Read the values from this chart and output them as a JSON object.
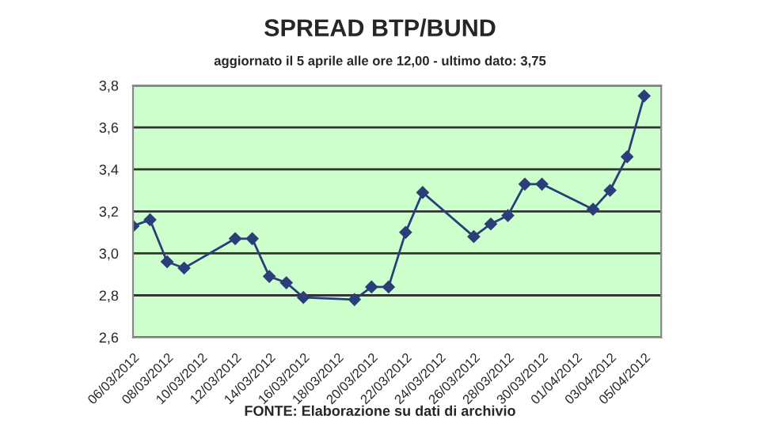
{
  "chart_data": {
    "type": "line",
    "title": "SPREAD BTP/BUND",
    "subtitle": "aggiornato il 5 aprile alle ore 12,00 - ultimo dato: 3,75",
    "x": [
      "2012-03-06",
      "2012-03-07",
      "2012-03-08",
      "2012-03-09",
      "2012-03-12",
      "2012-03-13",
      "2012-03-14",
      "2012-03-15",
      "2012-03-16",
      "2012-03-19",
      "2012-03-20",
      "2012-03-21",
      "2012-03-22",
      "2012-03-23",
      "2012-03-26",
      "2012-03-27",
      "2012-03-28",
      "2012-03-29",
      "2012-03-30",
      "2012-04-02",
      "2012-04-03",
      "2012-04-04",
      "2012-04-05"
    ],
    "series": [
      {
        "color": "#2a3f7a",
        "values": [
          3.13,
          3.16,
          2.96,
          2.93,
          3.07,
          3.07,
          2.89,
          2.86,
          2.79,
          2.78,
          2.84,
          2.84,
          3.1,
          3.29,
          3.08,
          3.14,
          3.18,
          3.33,
          3.33,
          3.21,
          3.3,
          3.46,
          3.75
        ]
      }
    ],
    "marker": "diamond",
    "line_style": "solid",
    "grid": "y",
    "legend": false,
    "ylim": [
      2.6,
      3.8
    ],
    "yticks": [
      {
        "value": 2.6,
        "label": "2,6"
      },
      {
        "value": 2.8,
        "label": "2,8"
      },
      {
        "value": 3.0,
        "label": "3,0"
      },
      {
        "value": 3.2,
        "label": "3,2"
      },
      {
        "value": 3.4,
        "label": "3,4"
      },
      {
        "value": 3.6,
        "label": "3,6"
      },
      {
        "value": 3.8,
        "label": "3,8"
      }
    ],
    "xlim": [
      "2012-03-06",
      "2012-04-06"
    ],
    "xticks": [
      {
        "value": "2012-03-06",
        "label": "06/03/2012"
      },
      {
        "value": "2012-03-08",
        "label": "08/03/2012"
      },
      {
        "value": "2012-03-10",
        "label": "10/03/2012"
      },
      {
        "value": "2012-03-12",
        "label": "12/03/2012"
      },
      {
        "value": "2012-03-14",
        "label": "14/03/2012"
      },
      {
        "value": "2012-03-16",
        "label": "16/03/2012"
      },
      {
        "value": "2012-03-18",
        "label": "18/03/2012"
      },
      {
        "value": "2012-03-20",
        "label": "20/03/2012"
      },
      {
        "value": "2012-03-22",
        "label": "22/03/2012"
      },
      {
        "value": "2012-03-24",
        "label": "24/03/2012"
      },
      {
        "value": "2012-03-26",
        "label": "26/03/2012"
      },
      {
        "value": "2012-03-28",
        "label": "28/03/2012"
      },
      {
        "value": "2012-03-30",
        "label": "30/03/2012"
      },
      {
        "value": "2012-04-01",
        "label": "01/04/2012"
      },
      {
        "value": "2012-04-03",
        "label": "03/04/2012"
      },
      {
        "value": "2012-04-05",
        "label": "05/04/2012"
      }
    ],
    "annotations": [
      "FONTE: Elaborazione su dati di archivio"
    ]
  }
}
